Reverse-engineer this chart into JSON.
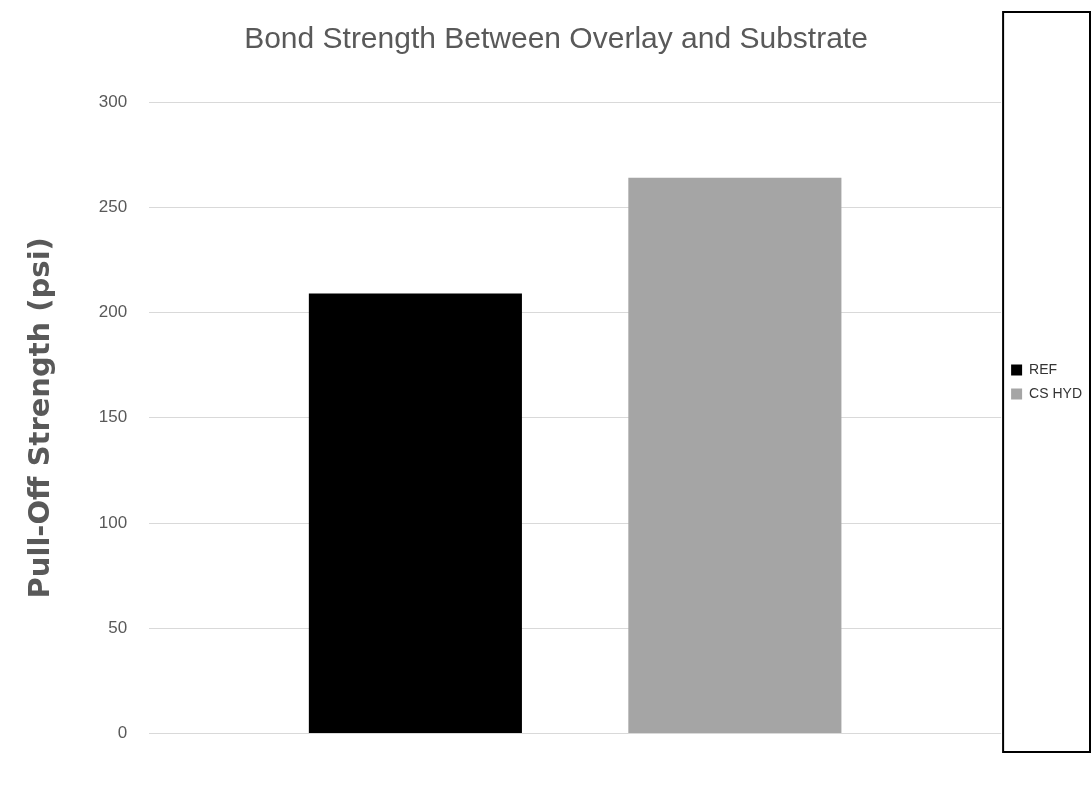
{
  "chart_data": {
    "type": "bar",
    "title": "Bond Strength Between Overlay and Substrate",
    "ylabel": "Pull-Off Strength (psi)",
    "categories": [
      null
    ],
    "series": [
      {
        "name": "REF",
        "color": "#000000",
        "values": [
          209
        ]
      },
      {
        "name": "CS HYD",
        "color": "#a5a5a5",
        "values": [
          264
        ]
      }
    ],
    "ylim": [
      0,
      300
    ],
    "yticks": [
      0,
      50,
      100,
      150,
      200,
      250,
      300
    ],
    "grid": "y",
    "legend": "right"
  }
}
